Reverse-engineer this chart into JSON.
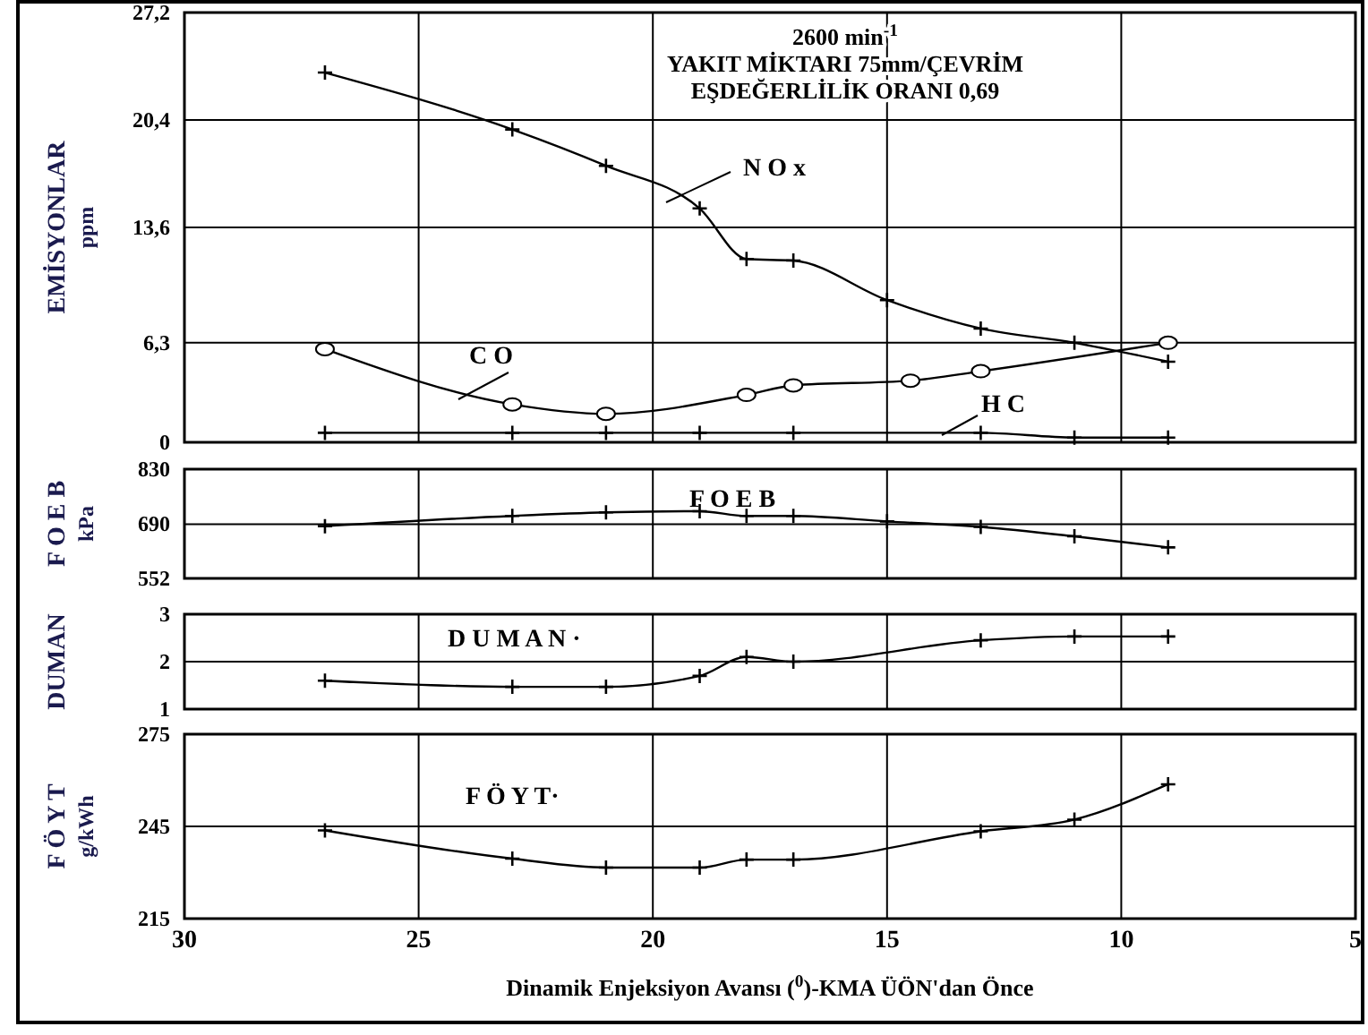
{
  "chart_data": [
    {
      "type": "line",
      "title": "2600 min$^{-1}$\nYAKIT MİKTARI 75mm/ÇEVRİM\nEŞDEĞERLİLİK ORANI    0,69",
      "ylabel": "EMİSYONLAR\nppm",
      "xlim": [
        30,
        5
      ],
      "ylim": [
        0,
        27.2
      ],
      "yticks": [
        0,
        {
          "value": 6.3,
          "label": "6,3"
        },
        {
          "value": 13.6,
          "label": "13,6"
        },
        {
          "value": 20.4,
          "label": "20,4"
        },
        {
          "value": 27.2,
          "label": "27,2"
        }
      ],
      "xticks": [
        {
          "value": 25,
          "label": null
        },
        {
          "value": 20,
          "label": null
        },
        {
          "value": 15,
          "label": null
        },
        {
          "value": 10,
          "label": null
        }
      ],
      "tick_labels": "y",
      "grid": true,
      "series": [
        {
          "name": "N O x",
          "color": "#000000",
          "marker": "cross",
          "x": [
            27,
            23,
            21,
            19,
            18,
            17,
            15,
            13,
            11,
            9
          ],
          "values": [
            23.4,
            19.8,
            17.5,
            14.8,
            11.6,
            11.5,
            9.0,
            7.2,
            6.3,
            5.1
          ]
        },
        {
          "name": "C O",
          "color": "#000000",
          "marker": "circle",
          "x": [
            27,
            23,
            21,
            18,
            17,
            14.5,
            13,
            9
          ],
          "values": [
            5.9,
            2.4,
            1.8,
            3.0,
            3.6,
            3.9,
            4.5,
            6.3
          ]
        },
        {
          "name": "H C",
          "color": "#000000",
          "marker": "cross",
          "x": [
            27,
            23,
            21,
            19,
            17,
            13,
            11,
            9
          ],
          "values": [
            0.6,
            0.6,
            0.6,
            0.6,
            0.6,
            0.6,
            0.3,
            0.3
          ]
        }
      ]
    },
    {
      "type": "line",
      "ylabel": "F O E B\nkPa",
      "xlim": [
        30,
        5
      ],
      "ylim": [
        552,
        830
      ],
      "yticks": [
        552,
        690,
        830
      ],
      "xticks": [
        {
          "value": 25,
          "label": null
        },
        {
          "value": 20,
          "label": null
        },
        {
          "value": 15,
          "label": null
        },
        {
          "value": 10,
          "label": null
        }
      ],
      "tick_labels": "y",
      "grid": true,
      "series": [
        {
          "name": "F O E B",
          "color": "#000000",
          "marker": "cross",
          "x": [
            27,
            23,
            21,
            19,
            18,
            17,
            15,
            13,
            11,
            9
          ],
          "values": [
            685,
            711,
            720,
            723,
            711,
            711,
            697,
            683,
            659,
            631
          ]
        }
      ]
    },
    {
      "type": "line",
      "ylabel": "DUMAN",
      "xlim": [
        30,
        5
      ],
      "ylim": [
        1,
        3
      ],
      "yticks": [
        1,
        2,
        3
      ],
      "xticks": [
        {
          "value": 25,
          "label": null
        },
        {
          "value": 20,
          "label": null
        },
        {
          "value": 15,
          "label": null
        },
        {
          "value": 10,
          "label": null
        }
      ],
      "tick_labels": "y",
      "grid": true,
      "series": [
        {
          "name": "D U M A N ·",
          "color": "#000000",
          "marker": "cross",
          "x": [
            27,
            23,
            21,
            19,
            18,
            17,
            13,
            11,
            9
          ],
          "values": [
            1.6,
            1.47,
            1.47,
            1.7,
            2.1,
            2.0,
            2.45,
            2.53,
            2.53
          ]
        }
      ]
    },
    {
      "type": "line",
      "ylabel": "F Ö Y T\ng/kWh",
      "xlabel": "Dinamik Enjeksiyon Avansı ($^{0}$)-KMA ÜÖN'dan Önce",
      "xlim": [
        30,
        5
      ],
      "ylim": [
        215,
        275
      ],
      "yticks": [
        215,
        245,
        275
      ],
      "xticks": [
        30,
        25,
        20,
        15,
        10,
        5
      ],
      "grid": true,
      "series": [
        {
          "name": "F Ö Y T·",
          "color": "#000000",
          "marker": "cross",
          "x": [
            27,
            23,
            21,
            19,
            18,
            17,
            13,
            11,
            9
          ],
          "values": [
            243.7,
            234.5,
            231.6,
            231.6,
            234.2,
            234.2,
            243.4,
            247.2,
            258.7
          ]
        }
      ]
    }
  ]
}
